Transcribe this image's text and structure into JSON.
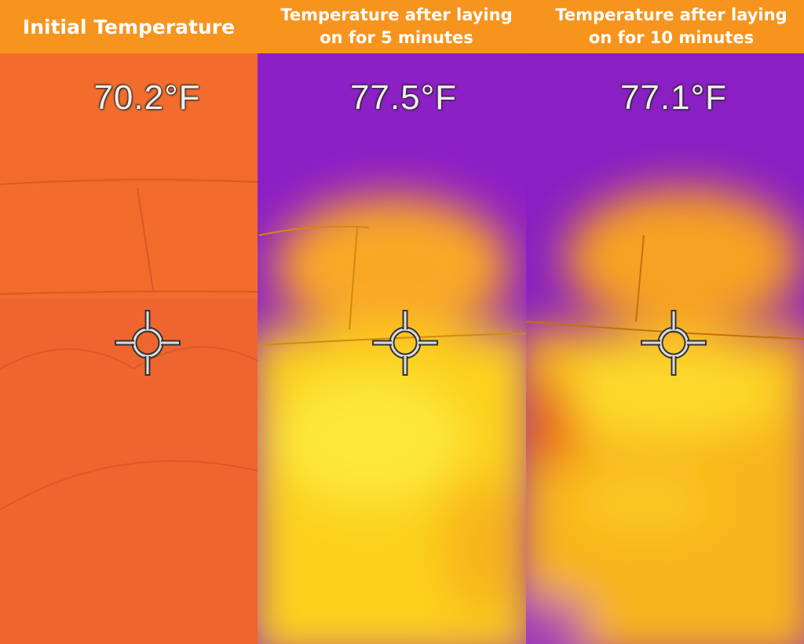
{
  "panels": [
    {
      "heading": "Initial Temperature",
      "reading": "70.2°F"
    },
    {
      "heading": "Temperature after laying on for 5 minutes",
      "reading": "77.5°F"
    },
    {
      "heading": "Temperature after laying on for 10 minutes",
      "reading": "77.1°F"
    }
  ]
}
